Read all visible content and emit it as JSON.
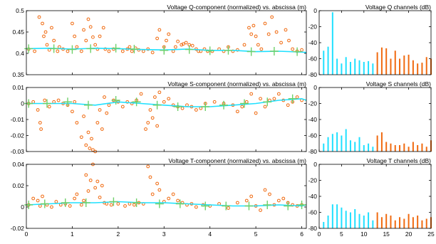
{
  "colors": {
    "orange": "#f06a10",
    "cyan": "#1fe0ff",
    "green": "#6ed06a",
    "axis": "#000000"
  },
  "chart_data": [
    {
      "type": "scatter",
      "title": "Voltage Q-component (normalized)  vs.  abscissa (m)",
      "xlim": [
        0,
        6.1
      ],
      "ylim": [
        0.35,
        0.5
      ],
      "yticks": [
        0.35,
        0.4,
        0.45,
        0.5
      ],
      "ytick_labels": [
        "0.35",
        "0.4",
        "0.45",
        "0.5"
      ],
      "xticks": [
        0,
        1,
        2,
        3,
        4,
        5,
        6
      ],
      "xtick_labels": [],
      "series": [
        {
          "style": "orange-circles",
          "x": [
            0.05,
            0.18,
            0.28,
            0.35,
            0.38,
            0.42,
            0.45,
            0.5,
            0.55,
            0.6,
            0.68,
            0.72,
            0.8,
            0.9,
            1.0,
            1.05,
            1.1,
            1.2,
            1.25,
            1.3,
            1.35,
            1.4,
            1.45,
            1.5,
            1.55,
            1.6,
            1.68,
            1.72,
            1.8,
            1.9,
            2.1,
            2.2,
            2.25,
            2.3,
            2.38,
            2.45,
            2.55,
            2.65,
            2.75,
            2.85,
            2.9,
            3.0,
            3.05,
            3.1,
            3.2,
            3.25,
            3.3,
            3.38,
            3.42,
            3.48,
            3.55,
            3.62,
            3.7,
            3.75,
            3.8,
            3.88,
            3.95,
            4.05,
            4.2,
            4.3,
            4.4,
            4.5,
            4.6,
            4.75,
            4.85,
            4.9,
            4.95,
            5.0,
            5.05,
            5.12,
            5.2,
            5.28,
            5.35,
            5.45,
            5.55,
            5.65,
            5.72,
            5.8,
            5.9,
            6.0
          ],
          "y": [
            0.41,
            0.405,
            0.485,
            0.47,
            0.44,
            0.45,
            0.42,
            0.408,
            0.46,
            0.43,
            0.405,
            0.415,
            0.41,
            0.405,
            0.47,
            0.44,
            0.415,
            0.405,
            0.455,
            0.43,
            0.48,
            0.462,
            0.438,
            0.42,
            0.41,
            0.44,
            0.46,
            0.41,
            0.405,
            0.41,
            0.405,
            0.41,
            0.415,
            0.405,
            0.412,
            0.408,
            0.405,
            0.41,
            0.402,
            0.435,
            0.455,
            0.415,
            0.43,
            0.445,
            0.405,
            0.415,
            0.428,
            0.42,
            0.422,
            0.425,
            0.42,
            0.418,
            0.41,
            0.405,
            0.405,
            0.41,
            0.405,
            0.405,
            0.41,
            0.405,
            0.415,
            0.405,
            0.408,
            0.42,
            0.46,
            0.445,
            0.465,
            0.44,
            0.42,
            0.41,
            0.47,
            0.445,
            0.485,
            0.45,
            0.425,
            0.455,
            0.43,
            0.41,
            0.405,
            0.408
          ]
        },
        {
          "style": "cyan-line",
          "x": [
            0,
            0.5,
            1,
            1.5,
            2,
            2.5,
            3,
            3.5,
            4,
            4.5,
            5,
            5.5,
            6,
            6.1
          ],
          "y": [
            0.411,
            0.412,
            0.41,
            0.412,
            0.411,
            0.409,
            0.408,
            0.41,
            0.407,
            0.407,
            0.404,
            0.405,
            0.403,
            0.402
          ]
        },
        {
          "style": "green-plus",
          "x": [
            0.05,
            0.6,
            1.0,
            1.4,
            1.95,
            2.35,
            3.0,
            3.55,
            4.0,
            4.4,
            4.9,
            5.4,
            5.9
          ],
          "y": [
            0.411,
            0.411,
            0.409,
            0.411,
            0.412,
            0.41,
            0.407,
            0.409,
            0.406,
            0.407,
            0.404,
            0.405,
            0.404
          ]
        }
      ]
    },
    {
      "type": "scatter",
      "title": "Voltage S-component (normalized)  vs.  abscissa (m)",
      "xlim": [
        0,
        6.1
      ],
      "ylim": [
        -0.03,
        0.01
      ],
      "yticks": [
        -0.03,
        -0.02,
        -0.01,
        0,
        0.01
      ],
      "ytick_labels": [
        "-0.03",
        "-0.02",
        "-0.01",
        "0",
        "0.01"
      ],
      "xticks": [
        0,
        1,
        2,
        3,
        4,
        5,
        6
      ],
      "xtick_labels": [],
      "series": [
        {
          "style": "orange-circles",
          "x": [
            0.05,
            0.15,
            0.25,
            0.3,
            0.32,
            0.4,
            0.5,
            0.6,
            0.7,
            0.8,
            0.9,
            1.0,
            1.05,
            1.1,
            1.2,
            1.25,
            1.3,
            1.35,
            1.38,
            1.42,
            1.45,
            1.5,
            1.55,
            1.6,
            1.65,
            1.7,
            1.75,
            1.8,
            1.9,
            2.0,
            2.1,
            2.2,
            2.3,
            2.4,
            2.5,
            2.6,
            2.65,
            2.7,
            2.75,
            2.8,
            2.85,
            2.9,
            3.0,
            3.1,
            3.2,
            3.3,
            3.4,
            3.5,
            3.6,
            3.7,
            3.8,
            3.9,
            4.1,
            4.3,
            4.5,
            4.6,
            4.7,
            4.8,
            4.9,
            5.0,
            5.1,
            5.2,
            5.3,
            5.4,
            5.5,
            5.6,
            5.7,
            5.8,
            5.9,
            6.0
          ],
          "y": [
            0,
            0.001,
            -0.004,
            -0.012,
            -0.016,
            0.002,
            -0.002,
            0.001,
            0.002,
            0,
            -0.001,
            -0.005,
            0.001,
            -0.012,
            -0.021,
            -0.008,
            -0.026,
            -0.018,
            -0.028,
            -0.022,
            -0.029,
            -0.03,
            -0.012,
            -0.004,
            -0.016,
            0.004,
            -0.006,
            -0.001,
            0.002,
            0.001,
            -0.002,
            0.001,
            0,
            0.002,
            0.006,
            -0.016,
            -0.012,
            -0.004,
            -0.009,
            0.004,
            -0.014,
            0.007,
            0.001,
            0.003,
            -0.001,
            -0.002,
            -0.003,
            -0.001,
            -0.002,
            -0.004,
            -0.003,
            0,
            0.001,
            0,
            -0.001,
            -0.005,
            -0.002,
            0.001,
            0.006,
            -0.006,
            0.003,
            -0.002,
            0.002,
            0.003,
            0.006,
            0.002,
            -0.001,
            0.001,
            0.004,
            0.002
          ]
        },
        {
          "style": "cyan-line",
          "x": [
            0,
            0.5,
            1,
            1.5,
            2,
            2.5,
            3,
            3.5,
            4,
            4.5,
            5,
            5.5,
            6,
            6.1
          ],
          "y": [
            0,
            0,
            0,
            -0.001,
            0.001,
            0,
            -0.001,
            -0.002,
            -0.002,
            -0.001,
            0,
            0.002,
            0.003,
            0.002
          ]
        },
        {
          "style": "green-plus",
          "x": [
            0.05,
            0.45,
            0.9,
            1.35,
            1.95,
            2.4,
            2.85,
            3.3,
            3.9,
            4.3,
            4.75,
            5.25,
            5.8
          ],
          "y": [
            0,
            0,
            0.001,
            -0.001,
            0.002,
            0.001,
            -0.001,
            -0.002,
            -0.002,
            -0.001,
            0,
            0.001,
            0.003
          ]
        }
      ]
    },
    {
      "type": "scatter",
      "title": "Voltage T-component (normalized)  vs.  abscissa (m)",
      "xlim": [
        0,
        6.1
      ],
      "ylim": [
        -0.02,
        0.04
      ],
      "yticks": [
        -0.02,
        0,
        0.02,
        0.04
      ],
      "ytick_labels": [
        "-0.02",
        "0",
        "0.02",
        "0.04"
      ],
      "xticks": [
        0,
        1,
        2,
        3,
        4,
        5,
        6
      ],
      "xtick_labels": [
        "0",
        "1",
        "2",
        "3",
        "4",
        "5",
        "6"
      ],
      "series": [
        {
          "style": "orange-circles",
          "x": [
            0.05,
            0.15,
            0.25,
            0.3,
            0.35,
            0.45,
            0.55,
            0.65,
            0.75,
            0.85,
            0.95,
            1.05,
            1.1,
            1.2,
            1.25,
            1.3,
            1.35,
            1.4,
            1.45,
            1.5,
            1.55,
            1.6,
            1.65,
            1.7,
            1.75,
            1.85,
            2.0,
            2.15,
            2.25,
            2.35,
            2.45,
            2.55,
            2.65,
            2.7,
            2.75,
            2.85,
            2.9,
            3.0,
            3.1,
            3.2,
            3.3,
            3.4,
            3.5,
            3.6,
            3.7,
            3.85,
            4.0,
            4.2,
            4.4,
            4.6,
            4.8,
            4.9,
            5.0,
            5.1,
            5.2,
            5.3,
            5.4,
            5.5,
            5.6,
            5.7,
            5.8,
            5.9,
            6.0
          ],
          "y": [
            0.002,
            0.008,
            0.006,
            0.001,
            0.01,
            0.002,
            0,
            0.005,
            0.002,
            0.003,
            0.001,
            0.008,
            0.012,
            0.002,
            0.006,
            0.03,
            0.015,
            0.025,
            0.04,
            0.018,
            0.024,
            0.009,
            0.02,
            0.004,
            0.003,
            0.002,
            0.003,
            0.001,
            0.003,
            0.002,
            0.004,
            0.003,
            0.038,
            0.028,
            0.012,
            0.022,
            0.016,
            0.005,
            0.008,
            0.012,
            0.006,
            0.004,
            0.002,
            0.003,
            0,
            0.002,
            0.001,
            0.003,
            -0.001,
            0.004,
            0.006,
            0.01,
            0.001,
            -0.003,
            0.016,
            0.012,
            0.002,
            0.006,
            0.008,
            0.004,
            0.002,
            0.001,
            0.002
          ]
        },
        {
          "style": "cyan-line",
          "x": [
            0,
            0.5,
            1,
            1.5,
            2,
            2.5,
            3,
            3.5,
            4,
            4.5,
            5,
            5.5,
            6,
            6.1
          ],
          "y": [
            0.002,
            0.003,
            0.004,
            0.004,
            0.005,
            0.004,
            0.004,
            0.003,
            0.002,
            0.001,
            0.001,
            0.002,
            0.001,
            0.002
          ]
        },
        {
          "style": "green-plus",
          "x": [
            0.05,
            0.4,
            0.85,
            1.3,
            1.9,
            2.4,
            2.9,
            3.35,
            3.9,
            4.35,
            4.85,
            5.25,
            5.7,
            6.0
          ],
          "y": [
            0.002,
            0.003,
            0.004,
            0.004,
            0.005,
            0.004,
            0.003,
            0.003,
            0.001,
            0.001,
            0.001,
            0.002,
            0.001,
            0.002
          ]
        }
      ]
    },
    {
      "type": "bar",
      "title": "Voltage Q channels (dB)",
      "xlim": [
        0,
        25
      ],
      "ylim": [
        -80,
        0
      ],
      "yticks": [
        -80,
        -60,
        -40,
        -20,
        0
      ],
      "ytick_labels": [
        "-80",
        "-60",
        "-40",
        "-20",
        "0"
      ],
      "xticks": [
        0,
        5,
        10,
        15,
        20,
        25
      ],
      "xtick_labels": [],
      "series": [
        {
          "name": "",
          "color": "cyan",
          "x": [
            1,
            2,
            3,
            4,
            5,
            6,
            7,
            8,
            9,
            10,
            11,
            12
          ],
          "values": [
            -50,
            -45,
            -2,
            -60,
            -66,
            -58,
            -64,
            -60,
            -62,
            -64,
            -63,
            -66
          ]
        },
        {
          "name": "",
          "color": "orange",
          "x": [
            13,
            14,
            15,
            16,
            17,
            18,
            19,
            20,
            21,
            22,
            23,
            24,
            25
          ],
          "values": [
            -52,
            -46,
            -47,
            -60,
            -50,
            -60,
            -56,
            -55,
            -62,
            -66,
            -65,
            -58,
            -60
          ]
        }
      ]
    },
    {
      "type": "bar",
      "title": "Voltage S channels (dB)",
      "xlim": [
        0,
        25
      ],
      "ylim": [
        -80,
        0
      ],
      "yticks": [
        -80,
        -60,
        -40,
        -20,
        0
      ],
      "ytick_labels": [
        "-80",
        "-60",
        "-40",
        "-20",
        "0"
      ],
      "xticks": [
        0,
        5,
        10,
        15,
        20,
        25
      ],
      "xtick_labels": [],
      "series": [
        {
          "name": "",
          "color": "cyan",
          "x": [
            1,
            2,
            3,
            4,
            5,
            6,
            7,
            8,
            9,
            10,
            11,
            12
          ],
          "values": [
            -70,
            -62,
            -58,
            -56,
            -60,
            -52,
            -66,
            -68,
            -62,
            -72,
            -70,
            -74
          ]
        },
        {
          "name": "",
          "color": "orange",
          "x": [
            13,
            14,
            15,
            16,
            17,
            18,
            19,
            20,
            21,
            22,
            23,
            24,
            25
          ],
          "values": [
            -60,
            -56,
            -68,
            -70,
            -72,
            -72,
            -70,
            -74,
            -68,
            -72,
            -70,
            -74,
            -66
          ]
        }
      ]
    },
    {
      "type": "bar",
      "title": "Voltage T channels (dB)",
      "xlim": [
        0,
        25
      ],
      "ylim": [
        -80,
        0
      ],
      "yticks": [
        -80,
        -60,
        -40,
        -20,
        0
      ],
      "ytick_labels": [
        "-80",
        "-60",
        "-40",
        "-20",
        "0"
      ],
      "xticks": [
        0,
        5,
        10,
        15,
        20,
        25
      ],
      "xtick_labels": [
        "0",
        "5",
        "10",
        "15",
        "20",
        "25"
      ],
      "series": [
        {
          "name": "",
          "color": "cyan",
          "x": [
            1,
            2,
            3,
            4,
            5,
            6,
            7,
            8,
            9,
            10,
            11,
            12
          ],
          "values": [
            -72,
            -64,
            -50,
            -50,
            -54,
            -58,
            -60,
            -56,
            -62,
            -64,
            -60,
            -70
          ]
        },
        {
          "name": "",
          "color": "orange",
          "x": [
            13,
            14,
            15,
            16,
            17,
            18,
            19,
            20,
            21,
            22,
            23,
            24,
            25
          ],
          "values": [
            -60,
            -66,
            -62,
            -64,
            -70,
            -66,
            -68,
            -62,
            -66,
            -64,
            -70,
            -68,
            -66
          ]
        }
      ]
    }
  ]
}
